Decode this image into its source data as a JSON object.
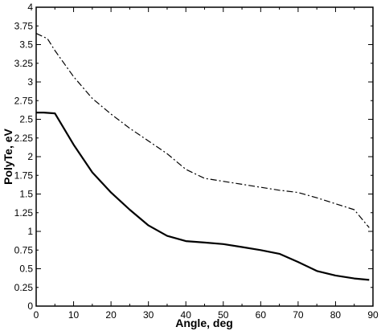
{
  "chart_data": {
    "type": "line",
    "xlabel": "Angle, deg",
    "ylabel": "PolyTe, eV",
    "xlim": [
      0,
      90
    ],
    "ylim": [
      0,
      4
    ],
    "xticks": [
      0,
      10,
      20,
      30,
      40,
      50,
      60,
      70,
      80,
      90
    ],
    "yticks": [
      "0",
      "0.25",
      "0.5",
      "0.75",
      "1",
      "1.25",
      "1.5",
      "1.75",
      "2",
      "2.25",
      "2.5",
      "2.75",
      "3",
      "3.25",
      "3.5",
      "3.75",
      "4"
    ],
    "grid": false,
    "series": [
      {
        "style": "solid",
        "color": "#000000",
        "x": [
          0,
          2,
          5,
          10,
          15,
          20,
          25,
          30,
          35,
          40,
          45,
          50,
          55,
          60,
          65,
          70,
          75,
          80,
          85,
          89
        ],
        "y": [
          2.59,
          2.59,
          2.58,
          2.16,
          1.79,
          1.52,
          1.29,
          1.08,
          0.94,
          0.87,
          0.85,
          0.83,
          0.79,
          0.75,
          0.7,
          0.59,
          0.47,
          0.41,
          0.37,
          0.35
        ]
      },
      {
        "style": "dash-dot",
        "color": "#000000",
        "x": [
          0,
          3,
          5,
          10,
          15,
          20,
          25,
          30,
          35,
          40,
          45,
          50,
          55,
          60,
          65,
          70,
          75,
          80,
          85,
          89
        ],
        "y": [
          3.65,
          3.58,
          3.42,
          3.07,
          2.78,
          2.57,
          2.38,
          2.21,
          2.04,
          1.83,
          1.71,
          1.67,
          1.63,
          1.59,
          1.55,
          1.52,
          1.45,
          1.37,
          1.29,
          1.05
        ]
      }
    ]
  }
}
